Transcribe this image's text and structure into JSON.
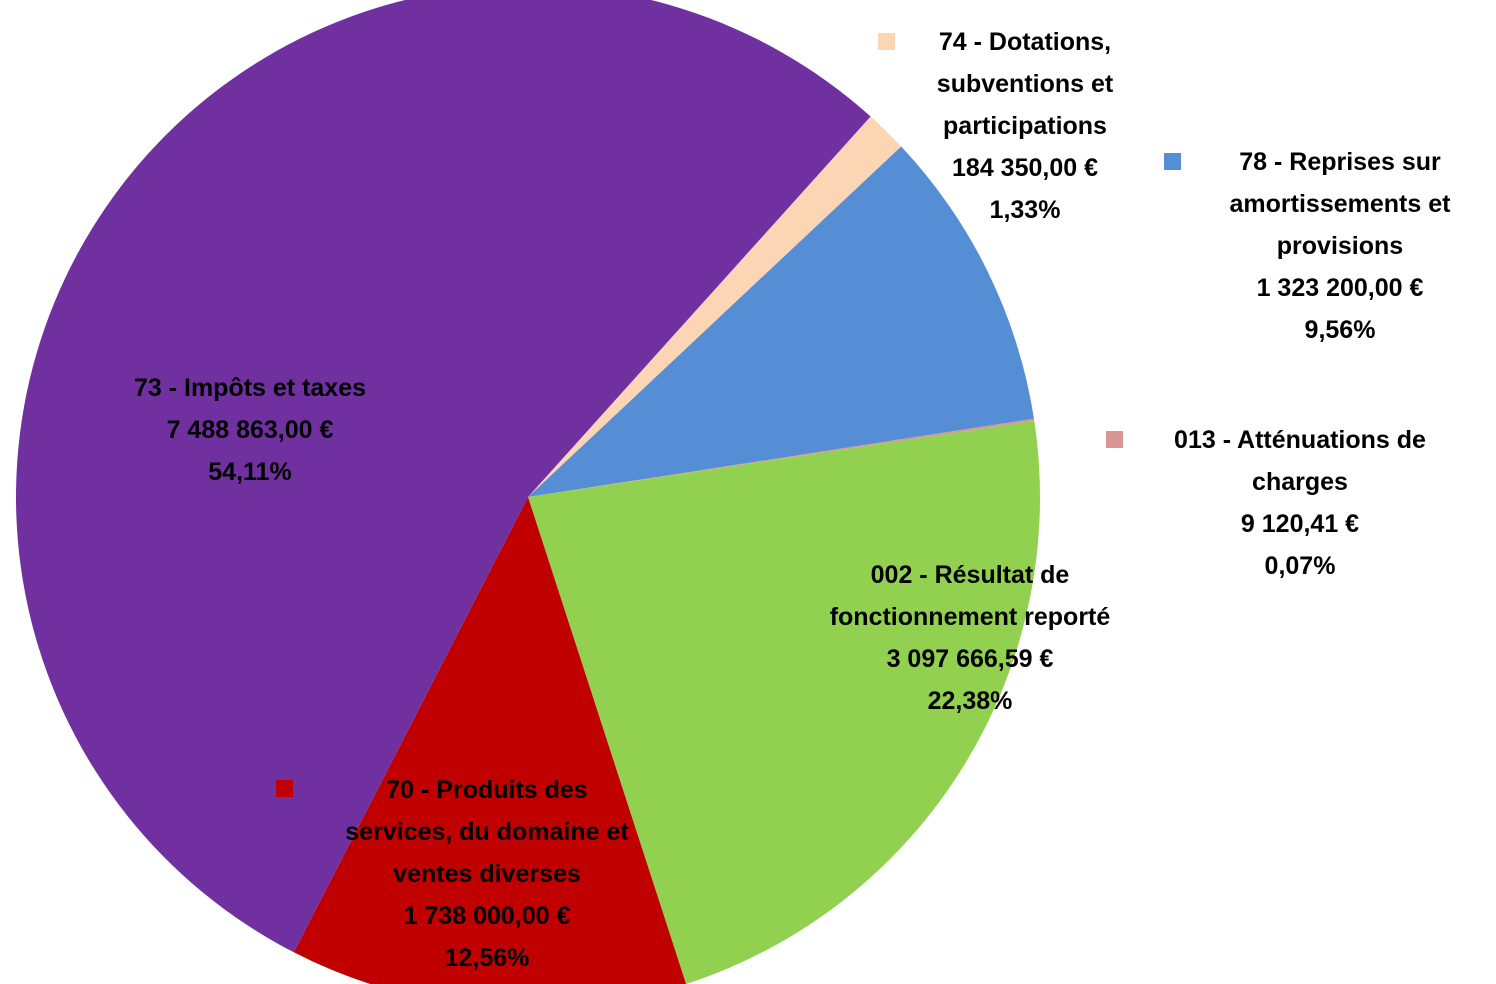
{
  "chart_data": {
    "type": "pie",
    "categories": [
      "74 - Dotations,\nsubventions et\nparticipations",
      "78 - Reprises sur\namortissements et\nprovisions",
      "013 - Atténuations de\ncharges",
      "002 - Résultat de\nfonctionnement reporté",
      "70 - Produits des\nservices, du domaine et\nventes diverses",
      "73 - Impôts et taxes"
    ],
    "values": [
      184350.0,
      1323200.0,
      9120.41,
      3097666.59,
      1738000.0,
      7488863.0
    ],
    "value_labels": [
      "184 350,00 €",
      "1 323 200,00 €",
      "9 120,41 €",
      "3 097 666,59 €",
      "1 738 000,00 €",
      "7 488 863,00 €"
    ],
    "percentages": [
      1.33,
      9.56,
      0.07,
      22.38,
      12.56,
      54.11
    ],
    "percentage_labels": [
      "1,33%",
      "9,56%",
      "0,07%",
      "22,38%",
      "12,56%",
      "54,11%"
    ],
    "colors": [
      "#fcd5b5",
      "#558ed5",
      "#d99694",
      "#92d050",
      "#c00000",
      "#7030a0"
    ]
  }
}
